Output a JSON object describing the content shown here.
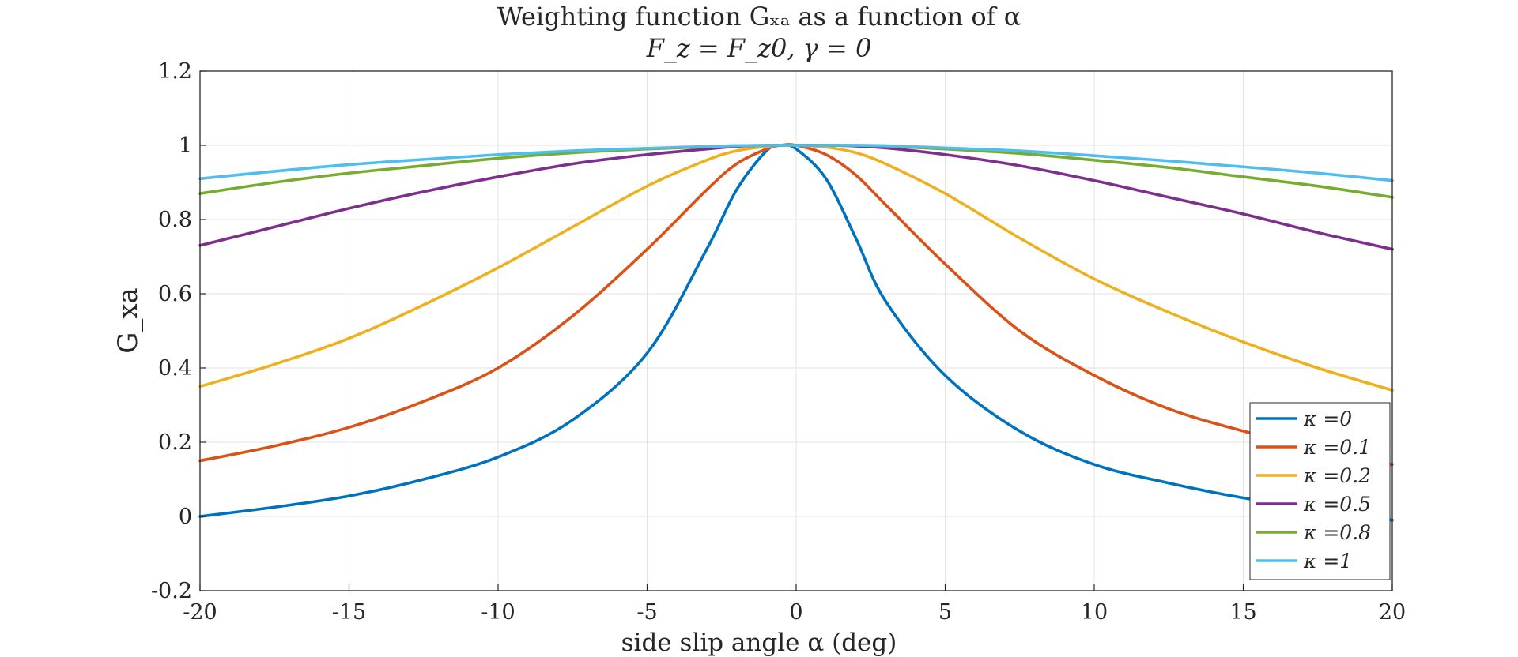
{
  "chart_data": {
    "type": "line",
    "title": "Weighting function Gₓₐ as a function of α",
    "subtitle": "F_z = F_z0, γ = 0",
    "xlabel": "side slip angle α (deg)",
    "ylabel": "G_xa",
    "xlim": [
      -20,
      20
    ],
    "ylim": [
      -0.2,
      1.2
    ],
    "xticks": [
      "-20",
      "-15",
      "-10",
      "-5",
      "0",
      "5",
      "10",
      "15",
      "20"
    ],
    "yticks": [
      "-0.2",
      "0",
      "0.2",
      "0.4",
      "0.6",
      "0.8",
      "1",
      "1.2"
    ],
    "grid": true,
    "legend_position": "bottom-right",
    "x": [
      -20,
      -17.5,
      -15,
      -12.5,
      -10,
      -7.5,
      -5,
      -3,
      -2,
      -1,
      -0.5,
      0,
      1,
      2,
      3,
      5,
      7.5,
      10,
      12.5,
      15,
      17.5,
      20
    ],
    "series": [
      {
        "name": "κ =0",
        "color": "#0072BD",
        "values": [
          0.0,
          0.025,
          0.055,
          0.1,
          0.16,
          0.26,
          0.44,
          0.72,
          0.88,
          0.985,
          1.0,
          0.99,
          0.91,
          0.75,
          0.58,
          0.38,
          0.23,
          0.14,
          0.09,
          0.05,
          0.02,
          -0.01
        ]
      },
      {
        "name": "κ =0.1",
        "color": "#D95319",
        "values": [
          0.15,
          0.19,
          0.24,
          0.31,
          0.4,
          0.54,
          0.72,
          0.88,
          0.95,
          0.99,
          1.0,
          1.0,
          0.975,
          0.92,
          0.84,
          0.68,
          0.5,
          0.38,
          0.29,
          0.23,
          0.18,
          0.14
        ]
      },
      {
        "name": "κ =0.2",
        "color": "#EDB120",
        "values": [
          0.35,
          0.41,
          0.48,
          0.57,
          0.67,
          0.78,
          0.89,
          0.96,
          0.985,
          0.997,
          1.0,
          1.0,
          0.995,
          0.98,
          0.95,
          0.87,
          0.75,
          0.64,
          0.55,
          0.47,
          0.4,
          0.34
        ]
      },
      {
        "name": "κ =0.5",
        "color": "#7E2F8E",
        "values": [
          0.73,
          0.78,
          0.83,
          0.875,
          0.915,
          0.95,
          0.975,
          0.99,
          0.997,
          1.0,
          1.0,
          1.0,
          1.0,
          0.998,
          0.993,
          0.975,
          0.945,
          0.905,
          0.86,
          0.815,
          0.765,
          0.72
        ]
      },
      {
        "name": "κ =0.8",
        "color": "#77AC30",
        "values": [
          0.87,
          0.9,
          0.925,
          0.945,
          0.965,
          0.98,
          0.99,
          0.996,
          0.999,
          1.0,
          1.0,
          1.0,
          1.0,
          1.0,
          0.998,
          0.99,
          0.978,
          0.96,
          0.94,
          0.915,
          0.89,
          0.86
        ]
      },
      {
        "name": "κ =1",
        "color": "#4DBEEE",
        "values": [
          0.91,
          0.93,
          0.948,
          0.962,
          0.975,
          0.985,
          0.992,
          0.997,
          0.999,
          1.0,
          1.0,
          1.0,
          1.0,
          1.0,
          0.999,
          0.993,
          0.985,
          0.972,
          0.958,
          0.942,
          0.925,
          0.905
        ]
      }
    ]
  }
}
